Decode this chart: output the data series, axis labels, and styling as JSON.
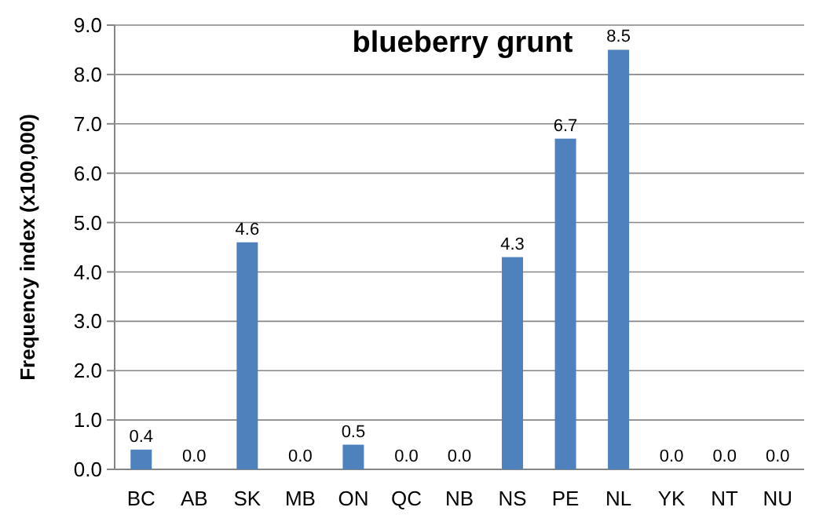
{
  "chart_data": {
    "type": "bar",
    "title": "blueberry grunt",
    "ylabel": "Frequency index (x100,000)",
    "categories": [
      "BC",
      "AB",
      "SK",
      "MB",
      "ON",
      "QC",
      "NB",
      "NS",
      "PE",
      "NL",
      "YK",
      "NT",
      "NU"
    ],
    "values": [
      0.4,
      0,
      4.6,
      0,
      0.5,
      0,
      0,
      4.3,
      6.7,
      8.5,
      0,
      0,
      0
    ],
    "value_labels": [
      "0.4",
      "0.0",
      "4.6",
      "0.0",
      "0.5",
      "0.0",
      "0.0",
      "4.3",
      "6.7",
      "8.5",
      "0.0",
      "0.0",
      "0.0"
    ],
    "color": "#4f81bd",
    "ylim": [
      0,
      9
    ],
    "yticks": [
      {
        "value": 0,
        "label": "0.0"
      },
      {
        "value": 1,
        "label": "1.0"
      },
      {
        "value": 2,
        "label": "2.0"
      },
      {
        "value": 3,
        "label": "3.0"
      },
      {
        "value": 4,
        "label": "4.0"
      },
      {
        "value": 5,
        "label": "5.0"
      },
      {
        "value": 6,
        "label": "6.0"
      },
      {
        "value": 7,
        "label": "7.0"
      },
      {
        "value": 8,
        "label": "8.0"
      },
      {
        "value": 9,
        "label": "9.0"
      }
    ],
    "grid": "y"
  }
}
